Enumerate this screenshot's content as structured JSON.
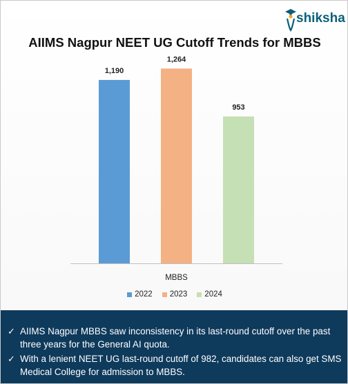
{
  "brand": {
    "logo_text": "shiksha",
    "accent": "#0a5f78",
    "icon": "graduate-cap-icon"
  },
  "chart_data": {
    "type": "bar",
    "title": "AIIMS Nagpur NEET UG Cutoff Trends for MBBS",
    "categories": [
      "MBBS"
    ],
    "series": [
      {
        "name": "2022",
        "values": [
          1190
        ],
        "label": "1,190",
        "color": "#5b9bd5"
      },
      {
        "name": "2023",
        "values": [
          1264
        ],
        "label": "1,264",
        "color": "#f4b183"
      },
      {
        "name": "2024",
        "values": [
          953
        ],
        "label": "953",
        "color": "#c5e0b4"
      }
    ],
    "xlabel": "",
    "ylabel": "",
    "ylim": [
      0,
      1400
    ],
    "grid": false,
    "legend_position": "bottom"
  },
  "notes": {
    "check_icon": "✓",
    "items": [
      "AIIMS Nagpur MBBS saw inconsistency in its last-round cutoff over the past three years for the General AI quota.",
      "With a lenient NEET UG last-round cutoff of 982, candidates can also get SMS Medical College for admission to MBBS."
    ]
  }
}
